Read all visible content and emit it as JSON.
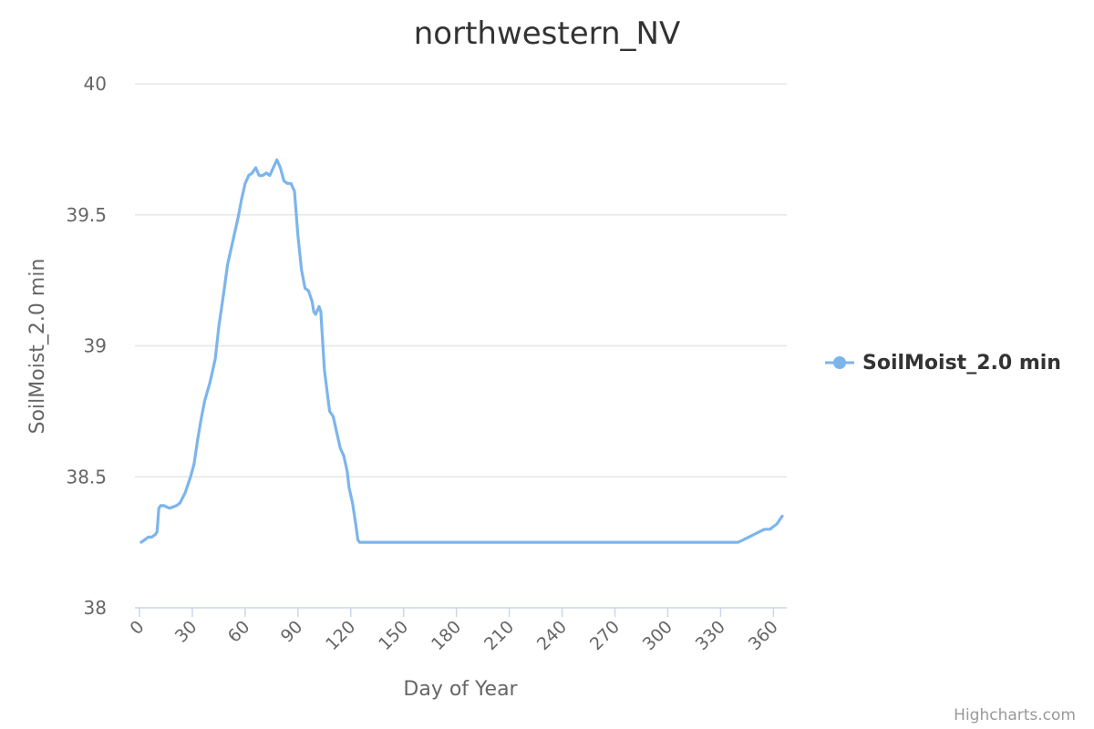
{
  "chart_data": {
    "type": "line",
    "title": "northwestern_NV",
    "xlabel": "Day of Year",
    "ylabel": "SoilMoist_2.0 min",
    "xlim": [
      0,
      365
    ],
    "ylim": [
      38,
      40
    ],
    "x_ticks": [
      0,
      30,
      60,
      90,
      120,
      150,
      180,
      210,
      240,
      270,
      300,
      330,
      360
    ],
    "y_ticks": [
      38,
      38.5,
      39,
      39.5,
      40
    ],
    "y_tick_labels": [
      "38",
      "38.5",
      "39",
      "39.5",
      "40"
    ],
    "grid": true,
    "legend_position": "right",
    "series": [
      {
        "name": "SoilMoist_2.0 min",
        "color": "#7cb5ec",
        "points": [
          [
            1,
            38.25
          ],
          [
            3,
            38.26
          ],
          [
            5,
            38.27
          ],
          [
            7,
            38.27
          ],
          [
            9,
            38.28
          ],
          [
            10,
            38.29
          ],
          [
            11,
            38.38
          ],
          [
            12,
            38.39
          ],
          [
            14,
            38.39
          ],
          [
            17,
            38.38
          ],
          [
            21,
            38.39
          ],
          [
            23,
            38.4
          ],
          [
            26,
            38.44
          ],
          [
            29,
            38.5
          ],
          [
            31,
            38.55
          ],
          [
            33,
            38.64
          ],
          [
            35,
            38.72
          ],
          [
            37,
            38.79
          ],
          [
            40,
            38.86
          ],
          [
            43,
            38.95
          ],
          [
            45,
            39.07
          ],
          [
            48,
            39.21
          ],
          [
            50,
            39.31
          ],
          [
            53,
            39.4
          ],
          [
            56,
            39.49
          ],
          [
            58,
            39.56
          ],
          [
            60,
            39.62
          ],
          [
            62,
            39.65
          ],
          [
            64,
            39.66
          ],
          [
            66,
            39.68
          ],
          [
            68,
            39.65
          ],
          [
            70,
            39.65
          ],
          [
            72,
            39.66
          ],
          [
            74,
            39.65
          ],
          [
            76,
            39.68
          ],
          [
            78,
            39.71
          ],
          [
            80,
            39.68
          ],
          [
            82,
            39.63
          ],
          [
            84,
            39.62
          ],
          [
            86,
            39.62
          ],
          [
            88,
            39.59
          ],
          [
            90,
            39.42
          ],
          [
            92,
            39.29
          ],
          [
            94,
            39.22
          ],
          [
            96,
            39.21
          ],
          [
            98,
            39.17
          ],
          [
            99,
            39.13
          ],
          [
            100,
            39.12
          ],
          [
            102,
            39.15
          ],
          [
            103,
            39.13
          ],
          [
            105,
            38.91
          ],
          [
            107,
            38.8
          ],
          [
            108,
            38.75
          ],
          [
            110,
            38.73
          ],
          [
            112,
            38.67
          ],
          [
            114,
            38.61
          ],
          [
            116,
            38.58
          ],
          [
            118,
            38.52
          ],
          [
            119,
            38.46
          ],
          [
            121,
            38.4
          ],
          [
            123,
            38.31
          ],
          [
            124,
            38.26
          ],
          [
            125,
            38.25
          ],
          [
            130,
            38.25
          ],
          [
            160,
            38.25
          ],
          [
            200,
            38.25
          ],
          [
            250,
            38.25
          ],
          [
            290,
            38.25
          ],
          [
            320,
            38.25
          ],
          [
            330,
            38.25
          ],
          [
            340,
            38.25
          ],
          [
            343,
            38.26
          ],
          [
            346,
            38.27
          ],
          [
            349,
            38.28
          ],
          [
            352,
            38.29
          ],
          [
            355,
            38.3
          ],
          [
            358,
            38.3
          ],
          [
            360,
            38.31
          ],
          [
            362,
            38.32
          ],
          [
            365,
            38.35
          ]
        ]
      }
    ],
    "credit": "Highcharts.com"
  }
}
